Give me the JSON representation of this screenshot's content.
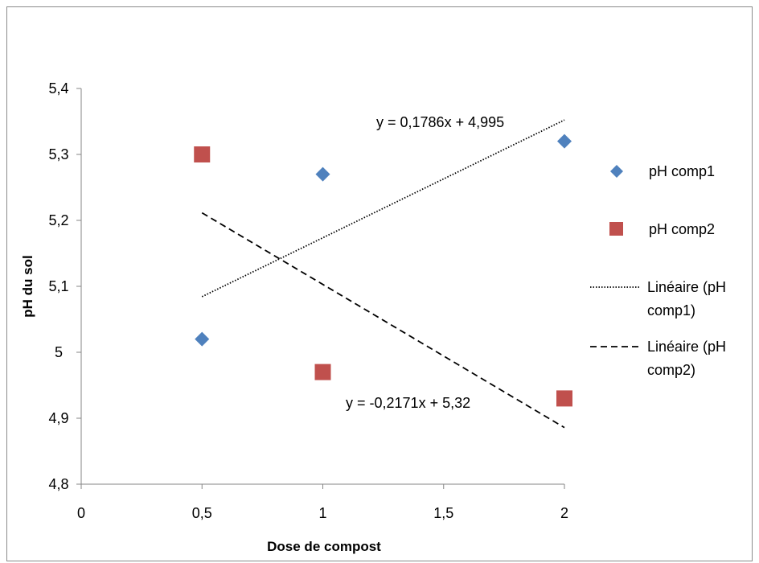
{
  "chart_data": {
    "type": "scatter",
    "title": "",
    "xlabel": "Dose de compost",
    "ylabel": "pH du sol",
    "xlim": [
      0,
      2
    ],
    "ylim": [
      4.8,
      5.4
    ],
    "x_ticks": [
      "0",
      "0,5",
      "1",
      "1,5",
      "2"
    ],
    "y_ticks": [
      "4,8",
      "4,9",
      "5",
      "5,1",
      "5,2",
      "5,3",
      "5,4"
    ],
    "grid": false,
    "legend_position": "right",
    "series": [
      {
        "name": "pH comp1",
        "marker": "diamond",
        "color": "#4f81bd",
        "x": [
          0.5,
          1,
          2
        ],
        "y": [
          5.02,
          5.27,
          5.32
        ]
      },
      {
        "name": "pH comp2",
        "marker": "square",
        "color": "#c0504d",
        "x": [
          0.5,
          1,
          2
        ],
        "y": [
          5.3,
          4.97,
          4.93
        ]
      }
    ],
    "trendlines": [
      {
        "name": "Linéaire (pH comp1)",
        "legend_lines": [
          "Linéaire (pH",
          "comp1)"
        ],
        "style": "dotted",
        "slope": 0.1786,
        "intercept": 4.995,
        "x_range": [
          0.5,
          2
        ],
        "equation": "y = 0,1786x + 4,995"
      },
      {
        "name": "Linéaire (pH comp2)",
        "legend_lines": [
          "Linéaire (pH",
          "comp2)"
        ],
        "style": "dashed",
        "slope": -0.2171,
        "intercept": 5.32,
        "x_range": [
          0.5,
          2
        ],
        "equation": "y = -0,2171x + 5,32"
      }
    ]
  }
}
